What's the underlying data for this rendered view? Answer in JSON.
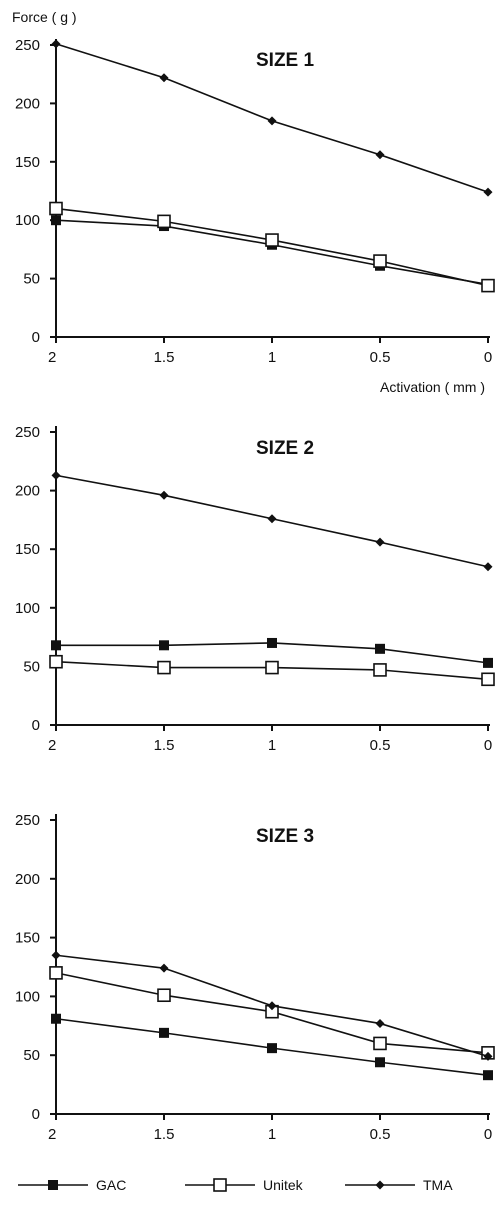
{
  "figure": {
    "ylabel": "Force ( g )",
    "xlabel": "Activation ( mm )"
  },
  "legend": [
    {
      "name": "GAC",
      "marker": "filled-square"
    },
    {
      "name": "Unitek",
      "marker": "open-square"
    },
    {
      "name": "TMA",
      "marker": "filled-diamond"
    }
  ],
  "chart_data": [
    {
      "type": "line",
      "title": "SIZE  1",
      "categories": [
        "2",
        "1.5",
        "1",
        "0.5",
        "0"
      ],
      "yticks": [
        "0",
        "50",
        "100",
        "150",
        "200",
        "250"
      ],
      "ylim": [
        0,
        250
      ],
      "series": [
        {
          "name": "GAC",
          "values": [
            100,
            95,
            79,
            61,
            45
          ]
        },
        {
          "name": "Unitek",
          "values": [
            110,
            99,
            83,
            65,
            44
          ]
        },
        {
          "name": "TMA",
          "values": [
            251,
            222,
            185,
            156,
            124
          ]
        }
      ]
    },
    {
      "type": "line",
      "title": "SIZE 2",
      "categories": [
        "2",
        "1.5",
        "1",
        "0.5",
        "0"
      ],
      "yticks": [
        "0",
        "50",
        "100",
        "150",
        "200",
        "250"
      ],
      "ylim": [
        0,
        250
      ],
      "series": [
        {
          "name": "GAC",
          "values": [
            68,
            68,
            70,
            65,
            53
          ]
        },
        {
          "name": "Unitek",
          "values": [
            54,
            49,
            49,
            47,
            39
          ]
        },
        {
          "name": "TMA",
          "values": [
            213,
            196,
            176,
            156,
            135
          ]
        }
      ]
    },
    {
      "type": "line",
      "title": "SIZE 3",
      "categories": [
        "2",
        "1.5",
        "1",
        "0.5",
        "0"
      ],
      "yticks": [
        "0",
        "50",
        "100",
        "150",
        "200",
        "250"
      ],
      "ylim": [
        0,
        250
      ],
      "series": [
        {
          "name": "GAC",
          "values": [
            81,
            69,
            56,
            44,
            33
          ]
        },
        {
          "name": "Unitek",
          "values": [
            120,
            101,
            87,
            60,
            52
          ]
        },
        {
          "name": "TMA",
          "values": [
            135,
            124,
            92,
            77,
            49
          ]
        }
      ]
    }
  ]
}
